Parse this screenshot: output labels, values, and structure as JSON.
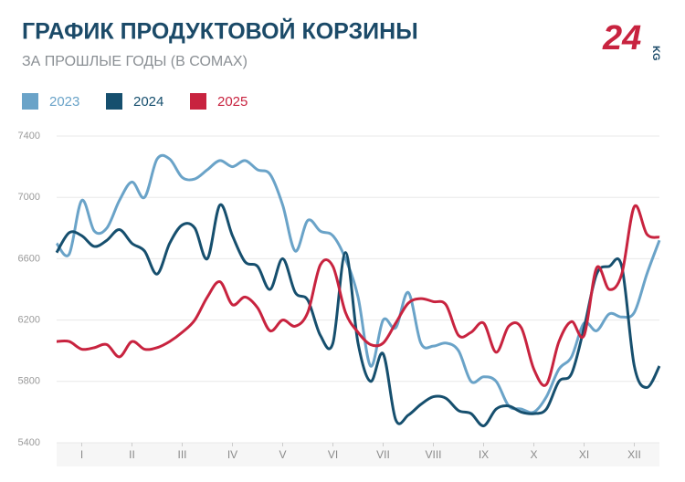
{
  "chart_data": {
    "type": "line",
    "title": "ГРАФИК ПРОДУКТОВОЙ КОРЗИНЫ",
    "subtitle": "ЗА ПРОШЛЫЕ ГОДЫ (В СОМАХ)",
    "logo_text": "24",
    "logo_suffix": "KG",
    "x": [
      0,
      0.25,
      0.5,
      0.75,
      1,
      1.25,
      1.5,
      1.75,
      2,
      2.25,
      2.5,
      2.75,
      3,
      3.25,
      3.5,
      3.75,
      4,
      4.25,
      4.5,
      4.75,
      5,
      5.25,
      5.5,
      5.75,
      6,
      6.25,
      6.5,
      6.75,
      7,
      7.25,
      7.5,
      7.75,
      8,
      8.25,
      8.5,
      8.75,
      9,
      9.25,
      9.5,
      9.75,
      10,
      10.25,
      10.5,
      10.75,
      11,
      11.25,
      11.5,
      11.75,
      12
    ],
    "xlim": [
      0,
      12
    ],
    "xticks": [
      {
        "value": 0.5,
        "label": "I"
      },
      {
        "value": 1.5,
        "label": "II"
      },
      {
        "value": 2.5,
        "label": "III"
      },
      {
        "value": 3.5,
        "label": "IV"
      },
      {
        "value": 4.5,
        "label": "V"
      },
      {
        "value": 5.5,
        "label": "VI"
      },
      {
        "value": 6.5,
        "label": "VII"
      },
      {
        "value": 7.5,
        "label": "VIII"
      },
      {
        "value": 8.5,
        "label": "IX"
      },
      {
        "value": 9.5,
        "label": "X"
      },
      {
        "value": 10.5,
        "label": "XI"
      },
      {
        "value": 11.5,
        "label": "XII"
      }
    ],
    "ylim": [
      5400,
      7400
    ],
    "yticks": [
      5400,
      5800,
      6200,
      6600,
      7000,
      7400
    ],
    "grid": true,
    "series": [
      {
        "name": "2023",
        "color": "#6aa3c8",
        "values": [
          6700,
          6630,
          6980,
          6780,
          6800,
          6980,
          7100,
          7000,
          7250,
          7250,
          7130,
          7120,
          7180,
          7240,
          7200,
          7240,
          7180,
          7150,
          6950,
          6650,
          6850,
          6780,
          6750,
          6600,
          6350,
          5900,
          6200,
          6150,
          6380,
          6050,
          6030,
          6050,
          6000,
          5800,
          5830,
          5800,
          5640,
          5620,
          5600,
          5700,
          5880,
          5960,
          6180,
          6130,
          6240,
          6220,
          6250,
          6500,
          6720
        ]
      },
      {
        "name": "2024",
        "color": "#164f6e",
        "values": [
          6640,
          6770,
          6750,
          6680,
          6720,
          6790,
          6700,
          6650,
          6500,
          6700,
          6820,
          6800,
          6600,
          6950,
          6750,
          6580,
          6550,
          6400,
          6600,
          6380,
          6330,
          6100,
          6050,
          6640,
          6050,
          5800,
          5980,
          5550,
          5580,
          5650,
          5700,
          5690,
          5610,
          5590,
          5510,
          5620,
          5640,
          5600,
          5590,
          5620,
          5800,
          5850,
          6150,
          6500,
          6550,
          6550,
          5900,
          5760,
          5900
        ]
      },
      {
        "name": "2025",
        "color": "#c8233f",
        "values": [
          6060,
          6060,
          6010,
          6020,
          6040,
          5960,
          6060,
          6010,
          6020,
          6060,
          6120,
          6200,
          6350,
          6450,
          6300,
          6350,
          6280,
          6130,
          6200,
          6160,
          6250,
          6560,
          6550,
          6250,
          6120,
          6040,
          6050,
          6180,
          6310,
          6340,
          6320,
          6300,
          6100,
          6120,
          6180,
          5990,
          6160,
          6150,
          5880,
          5780,
          6060,
          6190,
          6100,
          6540,
          6400,
          6500,
          6940,
          6760,
          6740
        ]
      }
    ]
  }
}
